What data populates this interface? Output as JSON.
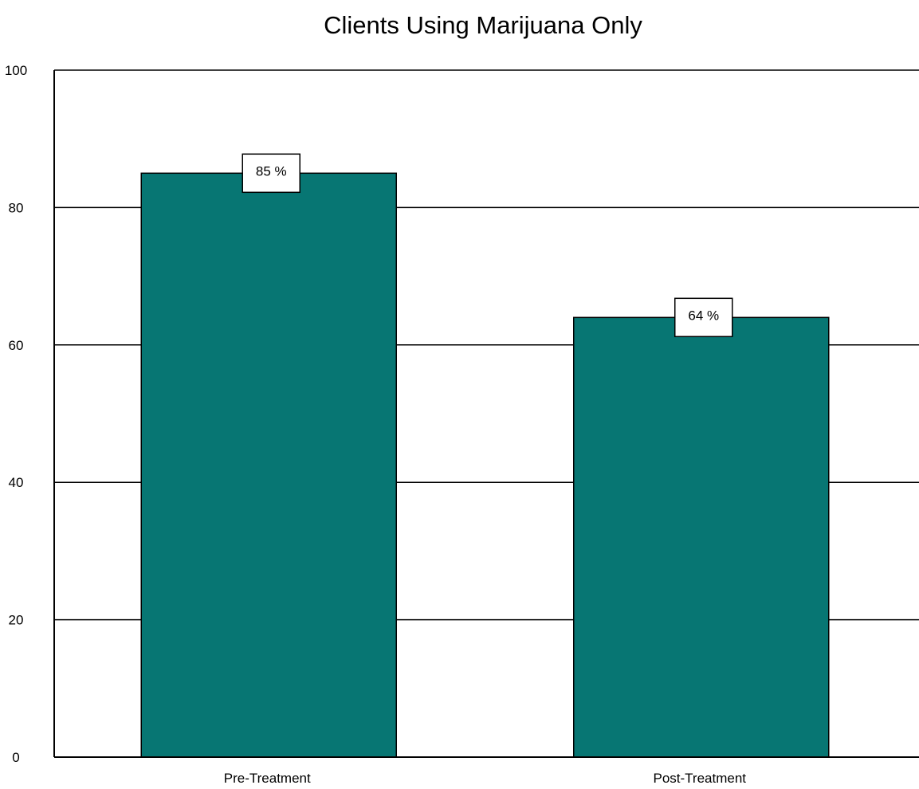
{
  "chart_data": {
    "type": "bar",
    "title": "Clients Using Marijuana Only",
    "categories": [
      "Pre-Treatment",
      "Post-Treatment"
    ],
    "values": [
      85,
      64
    ],
    "data_labels": [
      "85 %",
      "64 %"
    ],
    "ylim": [
      0,
      100
    ],
    "yticks": [
      0,
      20,
      40,
      60,
      80,
      100
    ],
    "xlabel": "",
    "ylabel": "",
    "grid": true,
    "legend": "none",
    "bar_color": "#077673",
    "gridline_color": "#000000"
  }
}
